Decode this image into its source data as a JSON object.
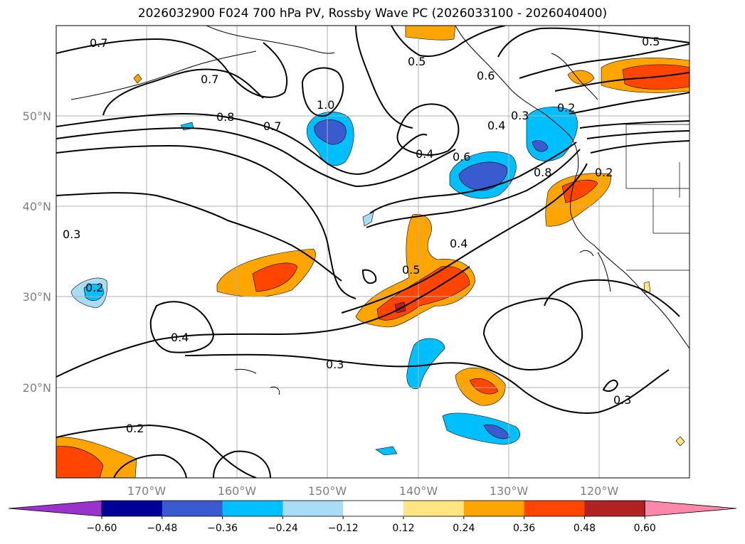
{
  "title": "2026032900 F024 700 hPa PV, Rossby Wave PC (2026033100 - 2026040400)",
  "lat_labels": [
    "50°N",
    "40°N",
    "30°N",
    "20°N"
  ],
  "lon_labels": [
    "170°W",
    "160°W",
    "150°W",
    "140°W",
    "130°W",
    "120°W"
  ],
  "contour_labels": [
    "0.7",
    "0.7",
    "0.8",
    "0.7",
    "1.0",
    "0.5",
    "0.6",
    "0.5",
    "0.4",
    "0.3",
    "0.2",
    "0.4",
    "0.6",
    "0.8",
    "0.2",
    "0.3",
    "0.2",
    "0.5",
    "0.4",
    "0.4",
    "0.3",
    "0.3",
    "0.2"
  ],
  "colorbar": {
    "ticks": [
      "−0.60",
      "−0.48",
      "−0.36",
      "−0.24",
      "−0.12",
      "0.12",
      "0.24",
      "0.36",
      "0.48",
      "0.60"
    ],
    "colors": [
      "#9933cc",
      "#000099",
      "#3a5bd0",
      "#00bfff",
      "#a8ddf5",
      "#ffffff",
      "#ffe680",
      "#ffa500",
      "#ff4500",
      "#b22222",
      "#ff88aa"
    ]
  }
}
